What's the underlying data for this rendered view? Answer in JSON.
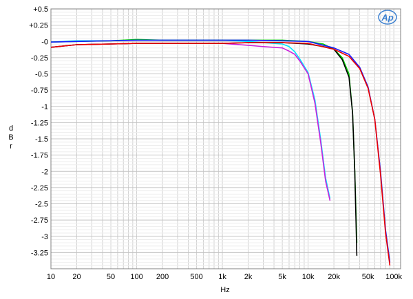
{
  "chart_data": {
    "type": "line",
    "title": "",
    "xlabel": "Hz",
    "ylabel": "dBr",
    "x_scale": "log",
    "xlim": [
      10,
      120000
    ],
    "ylim": [
      -3.5,
      0.5
    ],
    "grid": true,
    "x_tick_labels": [
      {
        "value": 10,
        "label": "10"
      },
      {
        "value": 20,
        "label": "20"
      },
      {
        "value": 50,
        "label": "50"
      },
      {
        "value": 100,
        "label": "100"
      },
      {
        "value": 200,
        "label": "200"
      },
      {
        "value": 500,
        "label": "500"
      },
      {
        "value": 1000,
        "label": "1k"
      },
      {
        "value": 2000,
        "label": "2k"
      },
      {
        "value": 5000,
        "label": "5k"
      },
      {
        "value": 10000,
        "label": "10k"
      },
      {
        "value": 20000,
        "label": "20k"
      },
      {
        "value": 50000,
        "label": "50k"
      },
      {
        "value": 100000,
        "label": "100k"
      }
    ],
    "y_tick_labels": [
      {
        "value": 0.5,
        "label": "+0.5"
      },
      {
        "value": 0.25,
        "label": "+0.25"
      },
      {
        "value": 0,
        "label": "-0"
      },
      {
        "value": -0.25,
        "label": "-0.25"
      },
      {
        "value": -0.5,
        "label": "-0.5"
      },
      {
        "value": -0.75,
        "label": "-0.75"
      },
      {
        "value": -1,
        "label": "-1"
      },
      {
        "value": -1.25,
        "label": "-1.25"
      },
      {
        "value": -1.5,
        "label": "-1.5"
      },
      {
        "value": -1.75,
        "label": "-1.75"
      },
      {
        "value": -2,
        "label": "-2"
      },
      {
        "value": -2.25,
        "label": "-2.25"
      },
      {
        "value": -2.5,
        "label": "-2.5"
      },
      {
        "value": -2.75,
        "label": "-2.75"
      },
      {
        "value": -3,
        "label": "-3"
      },
      {
        "value": -3.25,
        "label": "-3.25"
      }
    ],
    "series": [
      {
        "color": "#00e5ff",
        "x": [
          10,
          20,
          50,
          100,
          200,
          500,
          1000,
          2000,
          3000,
          5000,
          6000,
          7000,
          8000,
          10000,
          12000,
          14000,
          16000,
          18000
        ],
        "y": [
          -0.01,
          0.01,
          0.01,
          0.02,
          0.02,
          0.02,
          0.02,
          0.0,
          -0.02,
          -0.04,
          -0.08,
          -0.16,
          -0.27,
          -0.48,
          -0.9,
          -1.5,
          -2.1,
          -2.42
        ]
      },
      {
        "color": "#cc22dd",
        "x": [
          10,
          20,
          50,
          100,
          200,
          500,
          1000,
          2000,
          3000,
          5000,
          6000,
          7000,
          8000,
          10000,
          12000,
          14000,
          16000,
          18000
        ],
        "y": [
          -0.09,
          -0.05,
          -0.04,
          -0.03,
          -0.03,
          -0.03,
          -0.03,
          -0.06,
          -0.08,
          -0.1,
          -0.15,
          -0.2,
          -0.3,
          -0.5,
          -0.95,
          -1.55,
          -2.15,
          -2.45
        ]
      },
      {
        "color": "#00d000",
        "x": [
          10,
          20,
          50,
          100,
          200,
          500,
          1000,
          2000,
          5000,
          10000,
          15000,
          20000,
          25000,
          30000,
          33000,
          35000,
          37000
        ],
        "y": [
          -0.01,
          0.0,
          0.01,
          0.03,
          0.02,
          0.02,
          0.02,
          0.02,
          0.02,
          0.0,
          -0.04,
          -0.12,
          -0.25,
          -0.5,
          -1.1,
          -2.0,
          -3.1
        ]
      },
      {
        "color": "#000000",
        "x": [
          10,
          20,
          50,
          100,
          200,
          500,
          1000,
          2000,
          5000,
          10000,
          15000,
          20000,
          25000,
          30000,
          33000,
          35000,
          37000
        ],
        "y": [
          -0.09,
          -0.05,
          -0.04,
          -0.03,
          -0.03,
          -0.03,
          -0.03,
          -0.02,
          -0.02,
          -0.04,
          -0.08,
          -0.12,
          -0.28,
          -0.55,
          -1.1,
          -2.0,
          -3.3
        ]
      },
      {
        "color": "#1a1aff",
        "x": [
          10,
          20,
          50,
          100,
          200,
          500,
          1000,
          2000,
          5000,
          10000,
          20000,
          30000,
          40000,
          50000,
          60000,
          70000,
          80000,
          90000
        ],
        "y": [
          -0.01,
          0.0,
          0.01,
          0.02,
          0.02,
          0.02,
          0.02,
          0.02,
          0.01,
          0.0,
          -0.1,
          -0.2,
          -0.4,
          -0.7,
          -1.2,
          -2.0,
          -2.9,
          -3.4
        ]
      },
      {
        "color": "#ee0000",
        "x": [
          10,
          20,
          50,
          100,
          200,
          500,
          1000,
          2000,
          5000,
          10000,
          20000,
          30000,
          40000,
          50000,
          60000,
          70000,
          80000,
          90000
        ],
        "y": [
          -0.09,
          -0.05,
          -0.04,
          -0.03,
          -0.03,
          -0.03,
          -0.03,
          -0.02,
          -0.02,
          -0.03,
          -0.12,
          -0.23,
          -0.42,
          -0.72,
          -1.2,
          -2.05,
          -2.95,
          -3.45
        ]
      }
    ]
  },
  "logo": {
    "text": "Ap"
  }
}
